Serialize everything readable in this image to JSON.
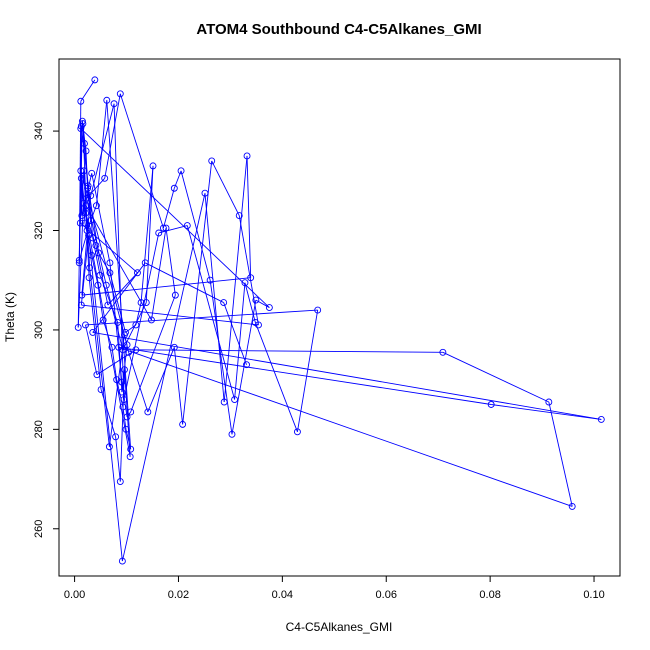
{
  "chart_data": {
    "type": "line",
    "title": "ATOM4 Southbound C4-C5Alkanes_GMI",
    "xlabel": "C4-C5Alkanes_GMI",
    "ylabel": "Theta (K)",
    "xlim": [
      -0.003,
      0.105
    ],
    "ylim": [
      250.5,
      354.5
    ],
    "xticks": [
      0.0,
      0.02,
      0.04,
      0.06,
      0.08,
      0.1
    ],
    "xtick_labels": [
      "0.00",
      "0.02",
      "0.04",
      "0.06",
      "0.08",
      "0.10"
    ],
    "yticks": [
      260,
      280,
      300,
      320,
      340
    ],
    "ytick_labels": [
      "260",
      "280",
      "300",
      "320",
      "340"
    ],
    "grid": false,
    "series_color": "#0000ff",
    "series": [
      {
        "marker": "open-circle",
        "x": [
          0.0039,
          0.0012,
          0.0009,
          0.0015,
          0.0022,
          0.0025,
          0.0031,
          0.0009,
          0.0013,
          0.002,
          0.0033,
          0.0045,
          0.0055,
          0.0072,
          0.0081,
          0.0093,
          0.0099,
          0.0108,
          0.0062,
          0.0042,
          0.0024,
          0.0016,
          0.0019,
          0.0035,
          0.0049,
          0.0083,
          0.0091,
          0.0101,
          0.0012,
          0.0021,
          0.0041,
          0.0064,
          0.0121,
          0.0011,
          0.0018,
          0.0028,
          0.0051,
          0.0079,
          0.0088,
          0.0096,
          0.0107,
          0.0017,
          0.0007,
          0.0013,
          0.0026,
          0.0046,
          0.0068,
          0.0098,
          0.0118,
          0.0128,
          0.0151,
          0.0138,
          0.0093,
          0.0061,
          0.0023,
          0.0058,
          0.0088,
          0.0171,
          0.0192,
          0.0205,
          0.0261,
          0.0303,
          0.0349,
          0.0375,
          0.0012,
          0.0014,
          0.0033,
          0.0068,
          0.0091,
          0.0101,
          0.0108,
          0.0194,
          0.0176,
          0.0148,
          0.0022,
          0.0029,
          0.0067,
          0.0096,
          0.0104,
          0.0141,
          0.0192,
          0.0208,
          0.0264,
          0.0317,
          0.0354,
          0.0013,
          0.0027,
          0.0092,
          0.0251,
          0.0288,
          0.0332,
          0.0339,
          0.0014,
          0.0031,
          0.0076,
          0.0095,
          0.0162,
          0.0217,
          0.0308,
          0.0328,
          0.0348,
          0.0429,
          0.0468,
          0.0021,
          0.0043,
          0.0118,
          0.0709,
          0.0913,
          0.0958,
          0.0085,
          0.0802,
          0.1014,
          0.0035,
          0.0136,
          0.0287,
          0.0331
        ],
        "y": [
          350.3,
          346.0,
          313.5,
          342.0,
          336.0,
          328.5,
          322.0,
          314.0,
          330.5,
          321.5,
          315.0,
          309.0,
          302.0,
          296.5,
          290.0,
          284.5,
          280.0,
          276.0,
          346.2,
          325.0,
          320.0,
          341.5,
          337.5,
          318.5,
          311.0,
          301.5,
          287.5,
          297.0,
          332.0,
          323.5,
          317.0,
          305.0,
          311.5,
          321.5,
          332.0,
          310.5,
          288.0,
          278.5,
          269.5,
          292.0,
          274.5,
          325.5,
          300.5,
          341.0,
          329.0,
          315.5,
          311.5,
          299.5,
          301.0,
          305.5,
          333.0,
          305.5,
          296.0,
          309.0,
          326.5,
          330.5,
          347.5,
          320.5,
          328.5,
          332.0,
          310.0,
          279.0,
          306.0,
          304.5,
          340.5,
          323.0,
          331.5,
          313.5,
          289.5,
          282.5,
          283.5,
          307.0,
          320.5,
          302.0,
          325.0,
          312.5,
          276.5,
          299.0,
          295.5,
          283.5,
          296.5,
          281.0,
          334.0,
          323.0,
          301.0,
          305.0,
          319.0,
          253.5,
          327.5,
          285.5,
          335.0,
          310.5,
          307.0,
          327.0,
          345.5,
          286.0,
          319.5,
          321.0,
          286.0,
          309.5,
          301.5,
          279.5,
          304.0,
          301.0,
          291.0,
          296.0,
          295.5,
          285.5,
          264.5,
          296.5,
          285.0,
          282.0,
          299.5,
          313.5,
          305.5,
          293.0
        ]
      }
    ]
  }
}
